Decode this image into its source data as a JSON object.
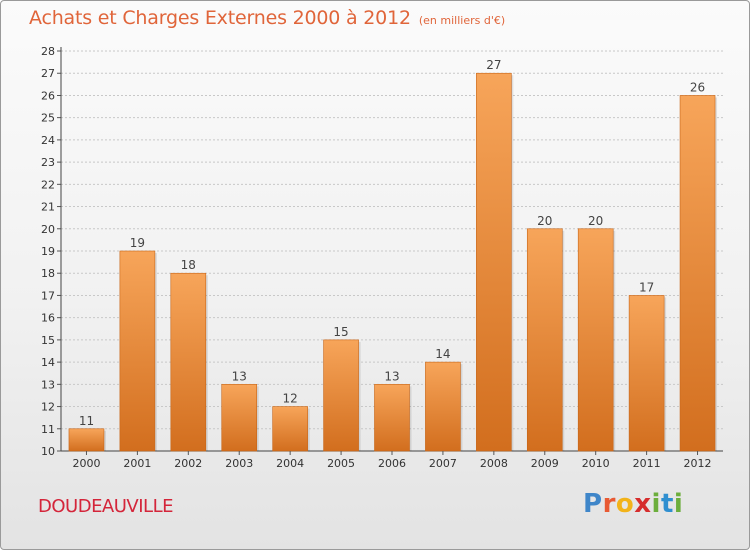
{
  "header": {
    "title": "Achats et Charges Externes 2000 à 2012",
    "unit": "(en milliers d'€)"
  },
  "footer": {
    "commune": "DOUDEAUVILLE",
    "brand": [
      "P",
      "r",
      "o",
      "x",
      "i",
      "t",
      "i"
    ]
  },
  "colors": {
    "title": "#e0653a",
    "commune": "#d4253a",
    "bar_light": "#f7a55a",
    "bar_dark": "#d26e1e",
    "brand": [
      "#3f86c9",
      "#e85a33",
      "#f2b31a",
      "#d62d2d",
      "#6cae3c",
      "#2f8fd0",
      "#6cae3c"
    ]
  },
  "chart_data": {
    "type": "bar",
    "categories": [
      "2000",
      "2001",
      "2002",
      "2003",
      "2004",
      "2005",
      "2006",
      "2007",
      "2008",
      "2009",
      "2010",
      "2011",
      "2012"
    ],
    "values": [
      11,
      19,
      18,
      13,
      12,
      15,
      13,
      14,
      27,
      20,
      20,
      17,
      26
    ],
    "value_labels": [
      "11",
      "19",
      "18",
      "13",
      "12",
      "15",
      "13",
      "14",
      "27",
      "20",
      "20",
      "17",
      "26"
    ],
    "y_ticks": [
      "10",
      "11",
      "12",
      "13",
      "14",
      "15",
      "16",
      "17",
      "18",
      "19",
      "20",
      "21",
      "22",
      "23",
      "24",
      "25",
      "26",
      "27",
      "28"
    ],
    "ylim": [
      10,
      28
    ],
    "grid": true
  }
}
